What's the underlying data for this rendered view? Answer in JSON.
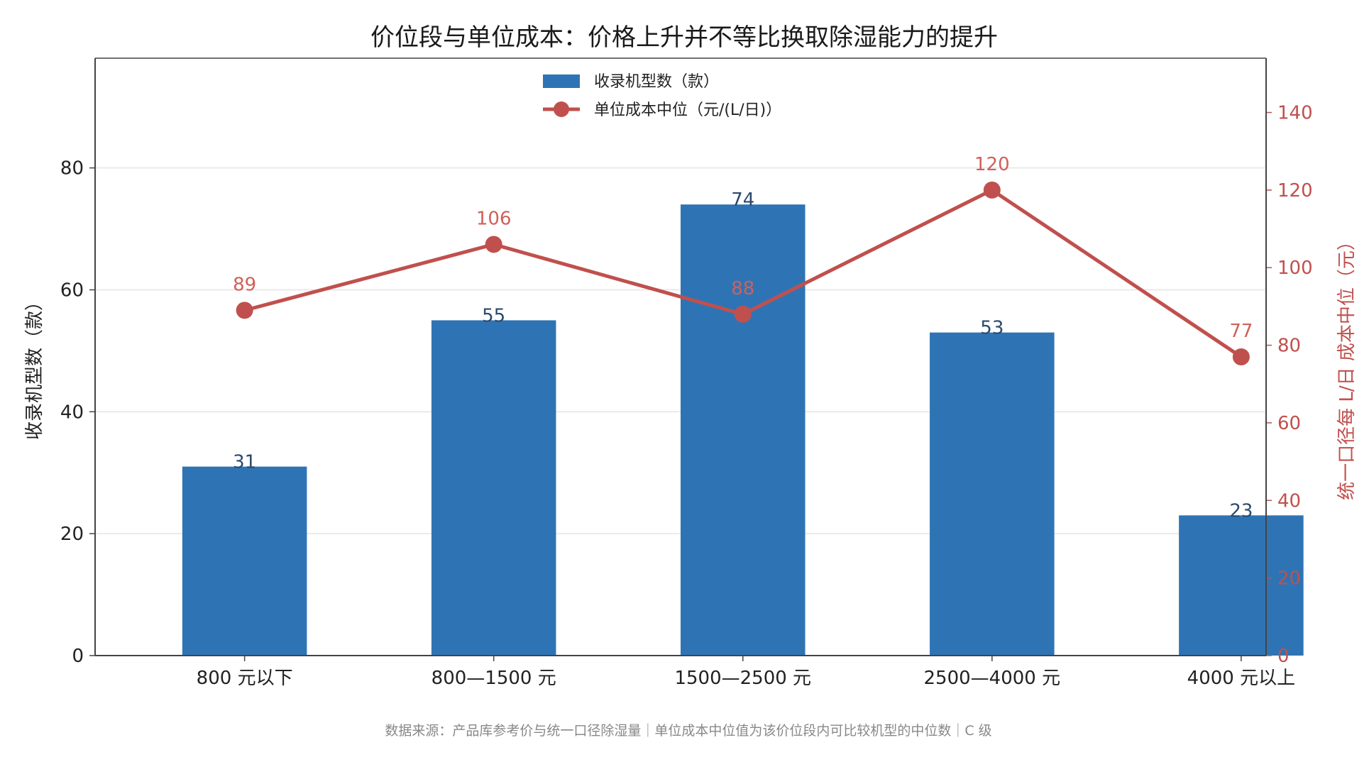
{
  "chart_data": {
    "type": "bar+line",
    "title": "价位段与单位成本：价格上升并不等比换取除湿能力的提升",
    "categories": [
      "800 元以下",
      "800—1500 元",
      "1500—2500 元",
      "2500—4000 元",
      "4000 元以上"
    ],
    "series": [
      {
        "name": "收录机型数（款）",
        "type": "bar",
        "axis": "left",
        "color": "#2e74b5",
        "values": [
          31,
          55,
          74,
          53,
          23
        ]
      },
      {
        "name": "单位成本中位（元/(L/日)）",
        "type": "line",
        "axis": "right",
        "color": "#c0504d",
        "values": [
          89,
          106,
          88,
          120,
          77
        ]
      }
    ],
    "ylabel": "收录机型数（款）",
    "ylabel_right": "统一口径每 L/日 成本中位（元）",
    "ylim": [
      0,
      98
    ],
    "ylim_right": [
      0,
      154
    ],
    "yticks": [
      0,
      20,
      40,
      60,
      80
    ],
    "yticks_right": [
      0,
      20,
      40,
      60,
      80,
      100,
      120,
      140
    ],
    "grid": true,
    "legend_position": "top-center",
    "source_note": "数据来源：产品库参考价与统一口径除湿量｜单位成本中位值为该价位段内可比较机型的中位数｜C 级"
  }
}
